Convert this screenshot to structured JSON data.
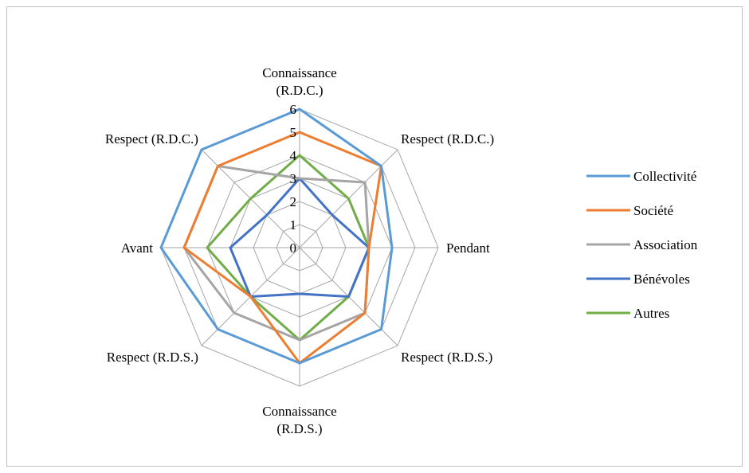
{
  "chart_data": {
    "type": "radar",
    "categories": [
      [
        "Connaissance",
        "(R.D.C.)"
      ],
      [
        "Respect (R.D.C.)"
      ],
      [
        "Pendant"
      ],
      [
        "Respect (R.D.S.)"
      ],
      [
        "Connaissance",
        "(R.D.S.)"
      ],
      [
        "Respect (R.D.S.)"
      ],
      [
        "Avant"
      ],
      [
        "Respect (R.D.C.)"
      ]
    ],
    "rlim": [
      0,
      6
    ],
    "ticks": [
      "0",
      "1",
      "2",
      "3",
      "4",
      "5",
      "6"
    ],
    "grid": true,
    "legend_position": "right",
    "series": [
      {
        "name": "Collectivité",
        "color": "#5b9bd5",
        "values": [
          6,
          5,
          4,
          5,
          5,
          5,
          6,
          6
        ]
      },
      {
        "name": "Société",
        "color": "#ed7d31",
        "values": [
          5,
          5,
          3,
          4,
          5,
          3,
          5,
          5
        ]
      },
      {
        "name": "Association",
        "color": "#a5a5a5",
        "values": [
          3,
          4,
          3,
          4,
          4,
          4,
          5,
          5
        ]
      },
      {
        "name": "Bénévoles",
        "color": "#4472c4",
        "values": [
          3,
          2,
          3,
          3,
          2,
          3,
          3,
          2
        ]
      },
      {
        "name": "Autres",
        "color": "#70ad47",
        "values": [
          4,
          3,
          3,
          3,
          4,
          3,
          4,
          3
        ]
      }
    ]
  }
}
